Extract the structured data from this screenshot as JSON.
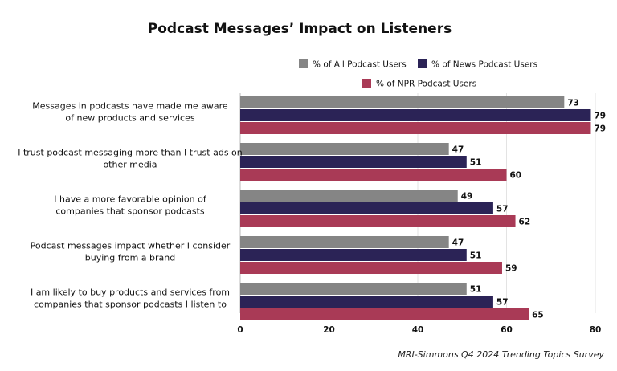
{
  "chart_data": {
    "type": "bar",
    "orientation": "horizontal",
    "title": "Podcast Messages’ Impact on Listeners",
    "categories": [
      [
        "Messages in podcasts have made me aware",
        "of new products and services"
      ],
      [
        "I trust podcast messaging more than I trust ads on",
        "other media"
      ],
      [
        "I have a more favorable opinion of",
        "companies that sponsor podcasts"
      ],
      [
        "Podcast messages impact whether I consider",
        "buying from a brand"
      ],
      [
        "I am likely to buy products and services from",
        "companies that sponsor podcasts I listen to"
      ]
    ],
    "series": [
      {
        "name": "% of All Podcast Users",
        "color": "#858585",
        "values": [
          73,
          47,
          49,
          47,
          51
        ]
      },
      {
        "name": "% of News Podcast Users",
        "color": "#2b2356",
        "values": [
          79,
          51,
          57,
          51,
          57
        ]
      },
      {
        "name": "% of NPR Podcast Users",
        "color": "#a93a56",
        "values": [
          79,
          60,
          62,
          59,
          65
        ]
      }
    ],
    "xlim": [
      0,
      80
    ],
    "xticks": [
      0,
      20,
      40,
      60,
      80
    ],
    "grid": true,
    "legend_position": "top-right",
    "source": "MRI-Simmons Q4 2024 Trending Topics Survey"
  }
}
